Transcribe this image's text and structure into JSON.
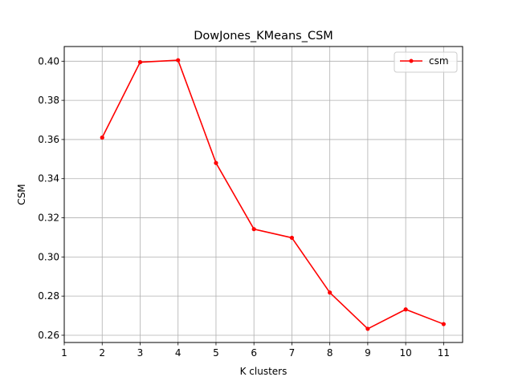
{
  "chart_data": {
    "type": "line",
    "title": "DowJones_KMeans_CSM",
    "xlabel": "K clusters",
    "ylabel": "CSM",
    "xlim": [
      1,
      11.5
    ],
    "ylim": [
      0.2563,
      0.4075
    ],
    "xticks": [
      1,
      2,
      3,
      4,
      5,
      6,
      7,
      8,
      9,
      10,
      11
    ],
    "yticks": [
      0.26,
      0.28,
      0.3,
      0.32,
      0.34,
      0.36,
      0.38,
      0.4
    ],
    "xtick_labels": [
      "1",
      "2",
      "3",
      "4",
      "5",
      "6",
      "7",
      "8",
      "9",
      "10",
      "11"
    ],
    "ytick_labels": [
      "0.26",
      "0.28",
      "0.30",
      "0.32",
      "0.34",
      "0.36",
      "0.38",
      "0.40"
    ],
    "grid": true,
    "legend_position": "top-right",
    "series": [
      {
        "name": "csm",
        "color": "#ff0000",
        "x": [
          2,
          3,
          4,
          5,
          6,
          7,
          8,
          9,
          10,
          11
        ],
        "y": [
          0.361,
          0.3995,
          0.4005,
          0.348,
          0.3142,
          0.3098,
          0.2818,
          0.2633,
          0.2732,
          0.2657
        ]
      }
    ]
  }
}
